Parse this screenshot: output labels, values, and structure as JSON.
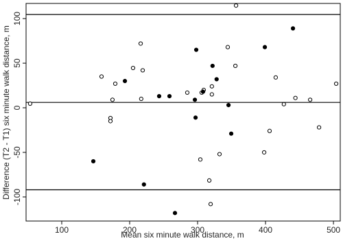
{
  "chart_data": {
    "type": "scatter",
    "xlabel": "Mean six minute walk distance, m",
    "ylabel": "Difference (T2 - T1) six minute walk distance, m",
    "xlim": [
      47.5,
      510
    ],
    "ylim": [
      -127,
      117
    ],
    "xticks": [
      100,
      200,
      300,
      400,
      500
    ],
    "yticks": [
      -100,
      -50,
      0,
      50,
      100
    ],
    "hlines": [
      104.6,
      6,
      -92
    ],
    "series": [
      {
        "color": "#000000",
        "filled": false,
        "x": [
          53.5,
          158.6,
          178.8,
          174.7,
          171.7,
          171.7,
          205,
          216.2,
          219.2,
          217,
          284.8,
          306,
          309,
          321,
          321,
          344.4,
          355.6,
          356.6,
          332.3,
          304,
          317.2,
          319.2,
          398,
          406,
          415,
          427,
          444,
          465.7,
          478.8,
          504
        ],
        "values": [
          4.6,
          35,
          27,
          9,
          -11.5,
          -15,
          44.6,
          72,
          42,
          10,
          17,
          17,
          20,
          24,
          15,
          68,
          47,
          114.6,
          -52,
          -58,
          -81.5,
          -108,
          -50,
          -26,
          34,
          4,
          11,
          9,
          -22,
          27
        ]
      },
      {
        "color": "#000000",
        "filled": true,
        "x": [
          146.5,
          193,
          243.4,
          258.6,
          298,
          296,
          297,
          308,
          322,
          328,
          345.5,
          349.5,
          399,
          440.4,
          221,
          266.7
        ],
        "values": [
          -60,
          30,
          13,
          13,
          65,
          9,
          -11,
          18,
          47,
          32,
          3,
          -29,
          68,
          89,
          -86,
          -118
        ]
      }
    ]
  }
}
